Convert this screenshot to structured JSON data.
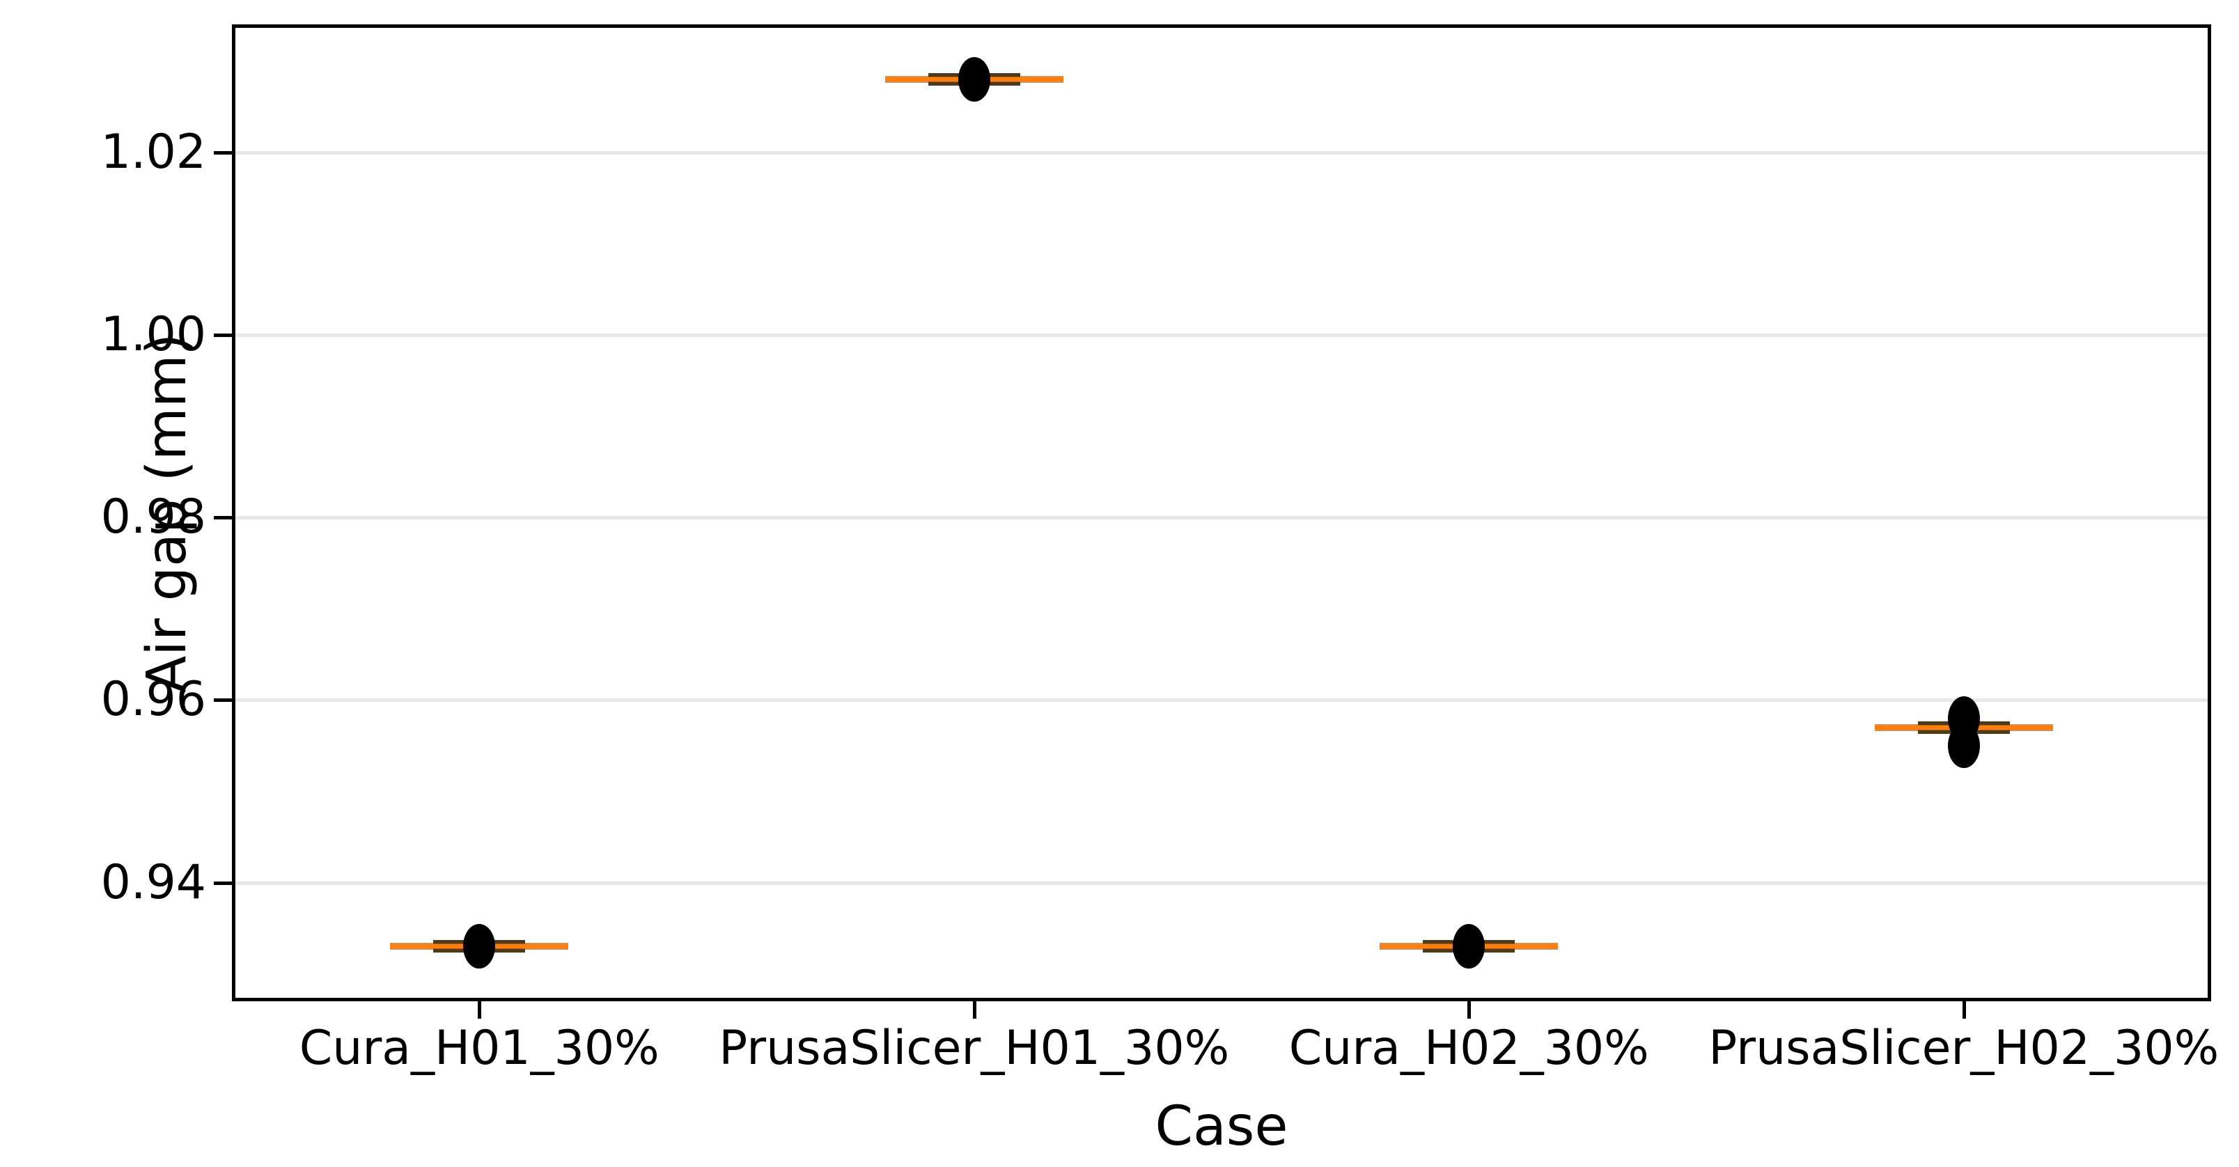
{
  "figure": {
    "background": "#ffffff"
  },
  "chart_data": {
    "type": "box",
    "orientation": "vertical",
    "title": "",
    "xlabel": "Case",
    "ylabel": "Air gap (mm)",
    "categories": [
      "Cura_H01_30%",
      "PrusaSlicer_H01_30%",
      "Cura_H02_30%",
      "PrusaSlicer_H02_30%"
    ],
    "series": [
      {
        "category": "Cura_H01_30%",
        "median": 0.933,
        "box_visibly_collapsed": true,
        "points": [
          0.933
        ]
      },
      {
        "category": "PrusaSlicer_H01_30%",
        "median": 1.028,
        "box_visibly_collapsed": true,
        "points": [
          1.028
        ]
      },
      {
        "category": "Cura_H02_30%",
        "median": 0.933,
        "box_visibly_collapsed": true,
        "points": [
          0.933
        ]
      },
      {
        "category": "PrusaSlicer_H02_30%",
        "median": 0.957,
        "box_visibly_collapsed": true,
        "points": [
          0.958,
          0.955
        ]
      }
    ],
    "ylim": [
      0.927,
      1.034
    ],
    "yticks": [
      0.94,
      0.96,
      0.98,
      1.0,
      1.02
    ],
    "ytick_labels": [
      "0.94",
      "0.96",
      "0.98",
      "1.00",
      "1.02"
    ],
    "grid": true,
    "legend": false,
    "colors": {
      "median_line": "#ff7f0e",
      "whisker_band": "#bf9a72",
      "box_band": "#503a1c",
      "point": "#000000",
      "gridline": "#e8e8e8",
      "spine": "#000000",
      "text": "#000000"
    }
  }
}
